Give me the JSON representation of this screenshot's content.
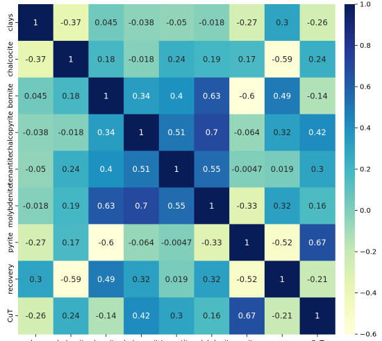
{
  "chart_data": {
    "type": "heatmap",
    "rows": [
      "clays",
      "chalcocite",
      "bornite",
      "chalcopyrite",
      "tenantite",
      "molybdenite",
      "pyrite",
      "recovery",
      "CuT"
    ],
    "columns": [
      "clays",
      "chalcocite",
      "bornite",
      "chalcopyrite",
      "tenantite",
      "molybdenite",
      "pyrite",
      "recovery",
      "CuT"
    ],
    "values": [
      [
        1,
        -0.37,
        0.045,
        -0.038,
        -0.05,
        -0.018,
        -0.27,
        0.3,
        -0.26
      ],
      [
        -0.37,
        1,
        0.18,
        -0.018,
        0.24,
        0.19,
        0.17,
        -0.59,
        0.24
      ],
      [
        0.045,
        0.18,
        1,
        0.34,
        0.4,
        0.63,
        -0.6,
        0.49,
        -0.14
      ],
      [
        -0.038,
        -0.018,
        0.34,
        1,
        0.51,
        0.7,
        -0.064,
        0.32,
        0.42
      ],
      [
        -0.05,
        0.24,
        0.4,
        0.51,
        1,
        0.55,
        -0.0047,
        0.019,
        0.3
      ],
      [
        -0.018,
        0.19,
        0.63,
        0.7,
        0.55,
        1,
        -0.33,
        0.32,
        0.16
      ],
      [
        -0.27,
        0.17,
        -0.6,
        -0.064,
        -0.0047,
        -0.33,
        1,
        -0.52,
        0.67
      ],
      [
        0.3,
        -0.59,
        0.49,
        0.32,
        0.019,
        0.32,
        -0.52,
        1,
        -0.21
      ],
      [
        -0.26,
        0.24,
        -0.14,
        0.42,
        0.3,
        0.16,
        0.67,
        -0.21,
        1
      ]
    ],
    "colormap": "YlGnBu",
    "colorbar": {
      "vmin": -0.6,
      "vmax": 1.0,
      "ticks": [
        1.0,
        0.8,
        0.6,
        0.4,
        0.2,
        0.0,
        -0.2,
        -0.4,
        -0.6
      ],
      "tick_labels": [
        "1.0",
        "0.8",
        "0.6",
        "0.4",
        "0.2",
        "0.0",
        "−0.2",
        "−0.4",
        "−0.6"
      ],
      "placement": "right"
    },
    "cell_labels": [
      [
        "1",
        "-0.37",
        "0.045",
        "-0.038",
        "-0.05",
        "-0.018",
        "-0.27",
        "0.3",
        "-0.26"
      ],
      [
        "-0.37",
        "1",
        "0.18",
        "-0.018",
        "0.24",
        "0.19",
        "0.17",
        "-0.59",
        "0.24"
      ],
      [
        "0.045",
        "0.18",
        "1",
        "0.34",
        "0.4",
        "0.63",
        "-0.6",
        "0.49",
        "-0.14"
      ],
      [
        "-0.038",
        "-0.018",
        "0.34",
        "1",
        "0.51",
        "0.7",
        "-0.064",
        "0.32",
        "0.42"
      ],
      [
        "-0.05",
        "0.24",
        "0.4",
        "0.51",
        "1",
        "0.55",
        "-0.0047",
        "0.019",
        "0.3"
      ],
      [
        "-0.018",
        "0.19",
        "0.63",
        "0.7",
        "0.55",
        "1",
        "-0.33",
        "0.32",
        "0.16"
      ],
      [
        "-0.27",
        "0.17",
        "-0.6",
        "-0.064",
        "-0.0047",
        "-0.33",
        "1",
        "-0.52",
        "0.67"
      ],
      [
        "0.3",
        "-0.59",
        "0.49",
        "0.32",
        "0.019",
        "0.32",
        "-0.52",
        "1",
        "-0.21"
      ],
      [
        "-0.26",
        "0.24",
        "-0.14",
        "0.42",
        "0.3",
        "0.16",
        "0.67",
        "-0.21",
        "1"
      ]
    ],
    "grid": false,
    "title": "",
    "xlabel": "",
    "ylabel": ""
  }
}
